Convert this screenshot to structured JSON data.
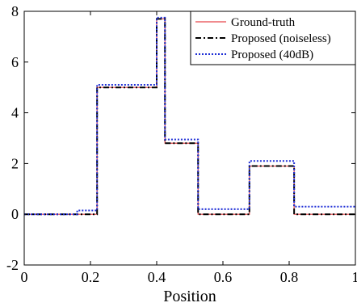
{
  "chart_data": {
    "type": "line",
    "title": "",
    "xlabel": "Position",
    "ylabel": "",
    "xlim": [
      0,
      1
    ],
    "ylim": [
      -2,
      8
    ],
    "x_ticks": [
      0,
      0.2,
      0.4,
      0.6,
      0.8,
      1
    ],
    "x_tick_labels": [
      "0",
      "0.2",
      "0.4",
      "0.6",
      "0.8",
      "1"
    ],
    "y_ticks": [
      -2,
      0,
      2,
      4,
      6,
      8
    ],
    "y_tick_labels": [
      "-2",
      "0",
      "2",
      "4",
      "6",
      "8"
    ],
    "grid": false,
    "legend_position": "top-right",
    "series": [
      {
        "name": "Ground-truth",
        "color": "#e8464a",
        "line_style": "solid",
        "x": [
          0,
          0.22,
          0.22,
          0.4,
          0.4,
          0.425,
          0.425,
          0.525,
          0.525,
          0.68,
          0.68,
          0.815,
          0.815,
          1.0
        ],
        "y": [
          0,
          0,
          5.0,
          5.0,
          7.7,
          7.7,
          2.8,
          2.8,
          0,
          0,
          1.9,
          1.9,
          0,
          0
        ]
      },
      {
        "name": "Proposed (noiseless)",
        "color": "#000000",
        "line_style": "dashdot",
        "x": [
          0,
          0.22,
          0.22,
          0.4,
          0.4,
          0.425,
          0.425,
          0.525,
          0.525,
          0.68,
          0.68,
          0.815,
          0.815,
          1.0
        ],
        "y": [
          0,
          0,
          5.0,
          5.0,
          7.7,
          7.7,
          2.8,
          2.8,
          0,
          0,
          1.9,
          1.9,
          0,
          0
        ]
      },
      {
        "name": "Proposed (40dB)",
        "color": "#1f2fd6",
        "line_style": "dotted",
        "x": [
          0,
          0.16,
          0.16,
          0.22,
          0.22,
          0.4,
          0.4,
          0.425,
          0.425,
          0.525,
          0.525,
          0.68,
          0.68,
          0.815,
          0.815,
          1.0
        ],
        "y": [
          0,
          0,
          0.15,
          0.15,
          5.1,
          5.1,
          7.75,
          7.75,
          2.95,
          2.95,
          0.2,
          0.2,
          2.1,
          2.1,
          0.3,
          0.3
        ]
      }
    ]
  }
}
